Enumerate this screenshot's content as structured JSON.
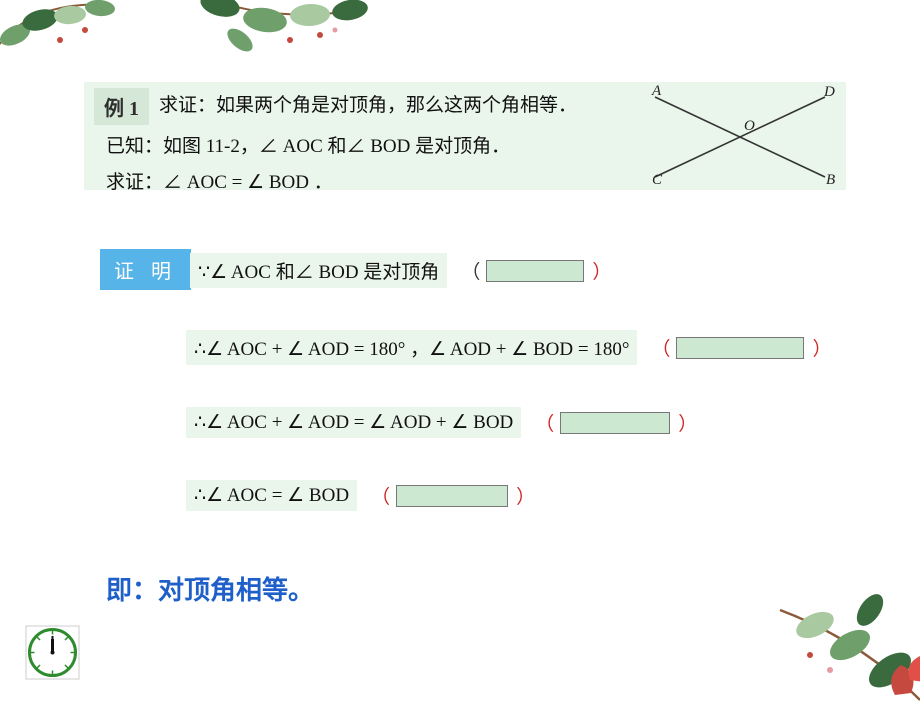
{
  "example": {
    "label": "例 1",
    "problem": "求证：如果两个角是对顶角，那么这两个角相等．",
    "given": "已知：如图 11-2，∠ AOC 和∠ BOD 是对顶角．",
    "toprove": "求证：∠ AOC = ∠ BOD ．"
  },
  "diagram": {
    "points": {
      "A": "A",
      "B": "B",
      "C": "C",
      "D": "D",
      "O": "O"
    },
    "line_color": "#333333",
    "label_color": "#222222",
    "label_fontsize": 15
  },
  "proof": {
    "label": "证 明",
    "lines": [
      {
        "formula": "∵∠ AOC 和∠ BOD 是对顶角",
        "paren_color": "#d02626",
        "blank_width": 98
      },
      {
        "formula": "∴∠ AOC + ∠ AOD = 180° ，∠ AOD + ∠ BOD = 180°",
        "paren_color": "#d02626",
        "blank_width": 128
      },
      {
        "formula": "∴∠ AOC + ∠ AOD = ∠ AOD + ∠ BOD",
        "paren_color": "#d02626",
        "blank_width": 110
      },
      {
        "formula": "∴∠ AOC = ∠ BOD",
        "paren_color": "#d02626",
        "blank_width": 112
      }
    ]
  },
  "conclusion": {
    "prefix": "即：",
    "text": "对顶角相等。"
  },
  "colors": {
    "example_bg": "#eaf5ec",
    "proof_label_bg": "#56b4e9",
    "blank_bg": "#cde8d1",
    "conclusion_blue": "#1f5fc9",
    "red": "#d02626"
  },
  "leaves": {
    "green_dark": "#3a6b3f",
    "green_mid": "#6fa06b",
    "green_light": "#a9c9a0",
    "stem": "#8a5a3a",
    "flower": "#c5493e",
    "pink": "#e79aa0"
  },
  "clock": {
    "border": "#2e8b2e",
    "face": "#ffffff",
    "hand": "#111111"
  }
}
